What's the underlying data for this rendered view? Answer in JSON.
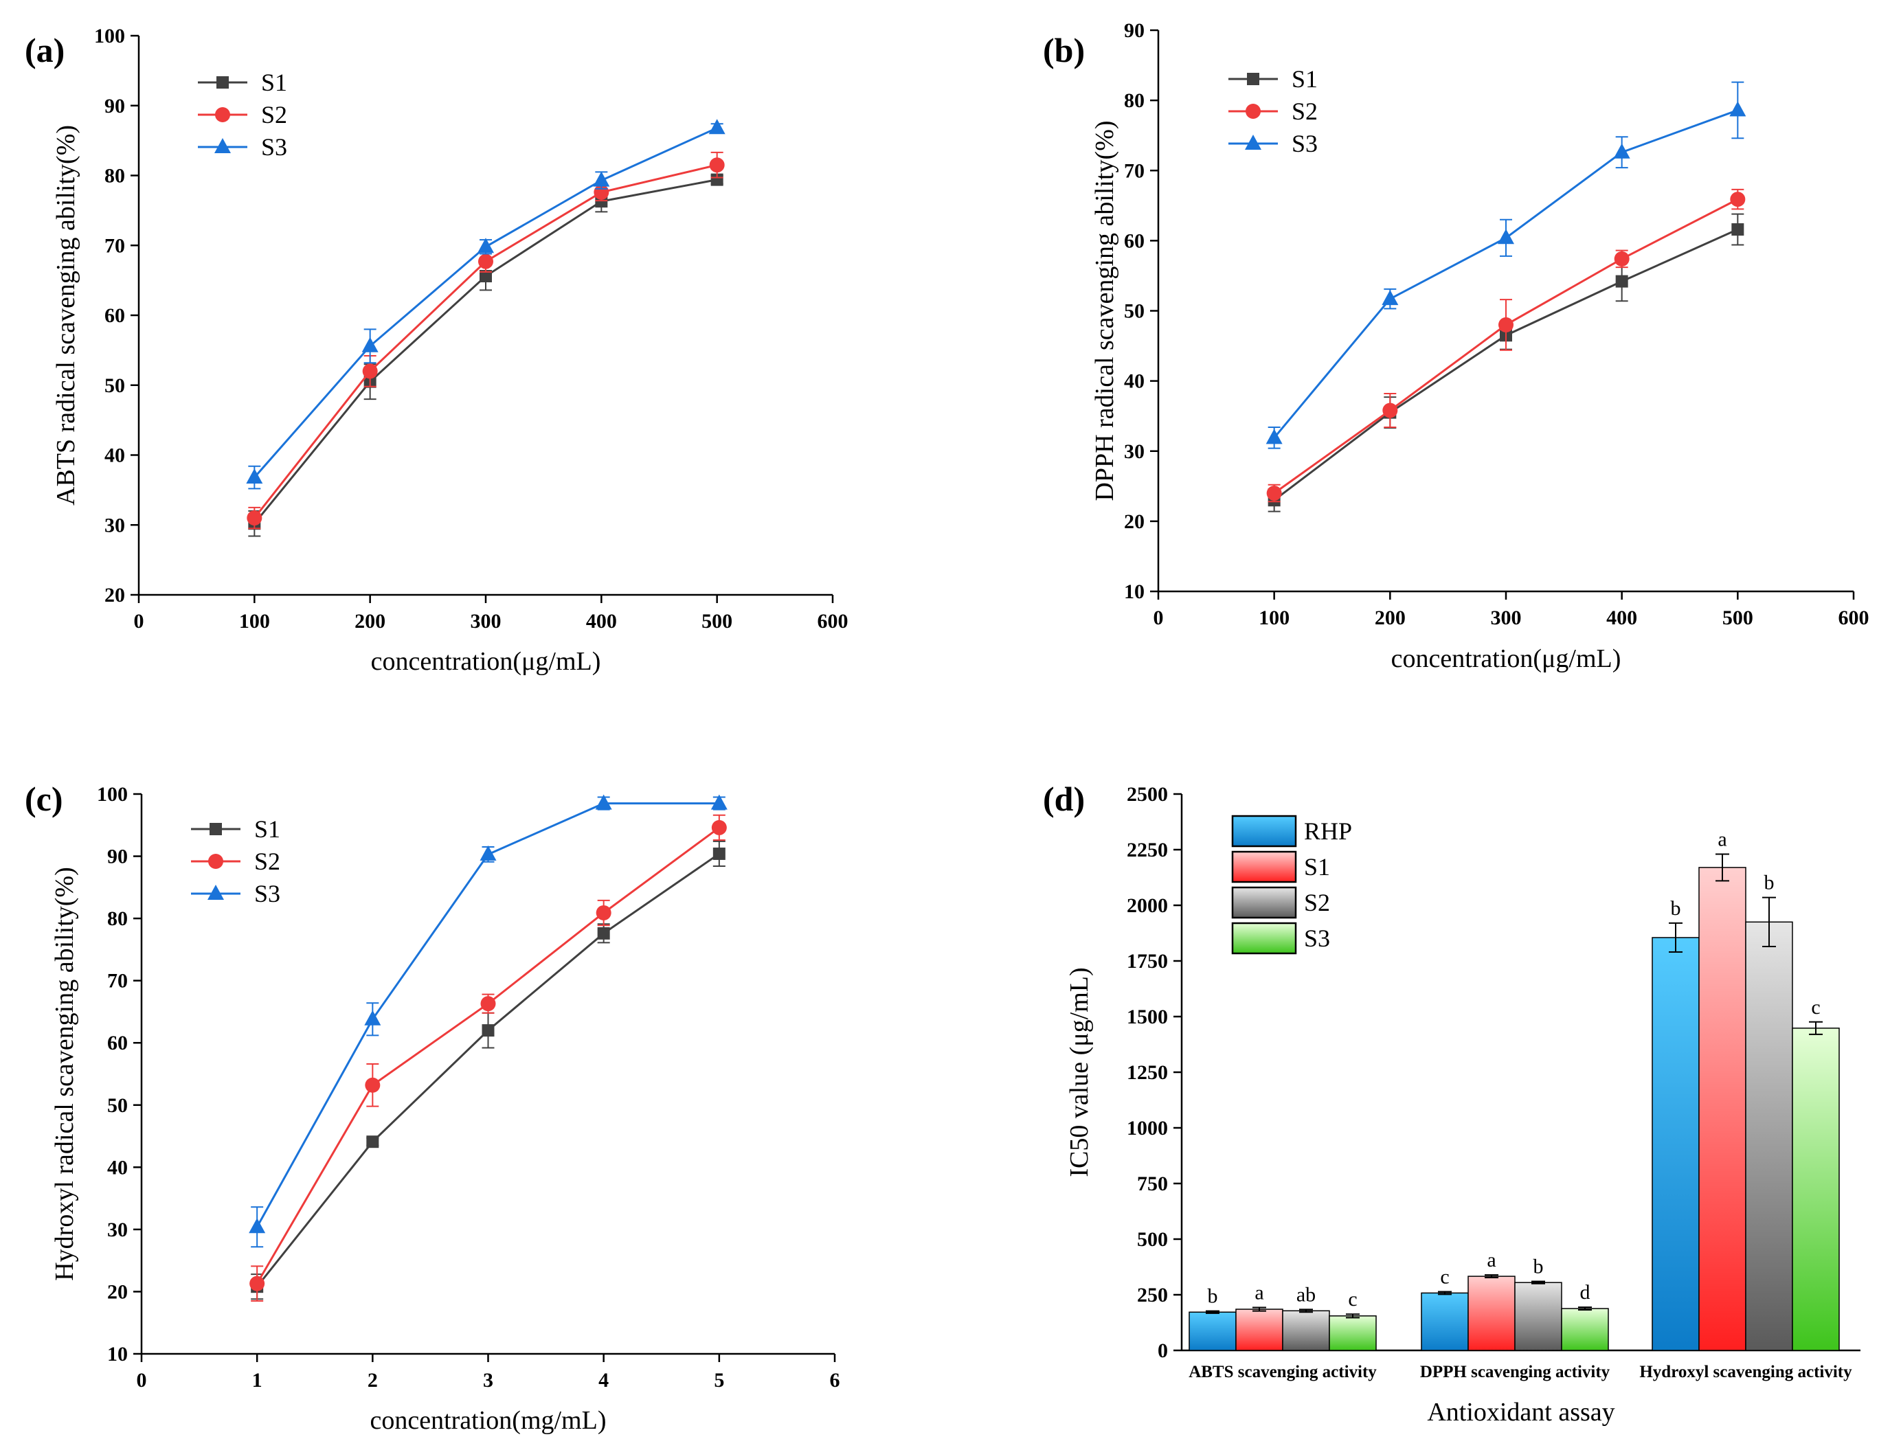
{
  "chart_data": [
    {
      "panel": "(a)",
      "type": "line",
      "title": "",
      "xlabel": "concentration(μg/mL)",
      "ylabel": "ABTS radical scavenging ability(%)",
      "xlim": [
        0,
        600
      ],
      "ylim": [
        20,
        100
      ],
      "xticks": [
        "0",
        "100",
        "200",
        "300",
        "400",
        "500",
        "600"
      ],
      "yticks": [
        "20",
        "30",
        "40",
        "50",
        "60",
        "70",
        "80",
        "90",
        "100"
      ],
      "x": [
        100,
        200,
        300,
        400,
        500
      ],
      "series": [
        {
          "name": "S1",
          "color": "#404040",
          "marker": "square",
          "values": [
            30.2,
            50.5,
            65.6,
            76.3,
            79.4
          ],
          "errors": [
            1.8,
            2.5,
            2.0,
            1.5,
            0.6
          ]
        },
        {
          "name": "S2",
          "color": "#ee3b3b",
          "marker": "circle",
          "values": [
            31.0,
            52.0,
            67.7,
            77.6,
            81.5
          ],
          "errors": [
            1.5,
            2.2,
            1.5,
            1.2,
            1.8
          ]
        },
        {
          "name": "S3",
          "color": "#1a73d9",
          "marker": "triangle",
          "values": [
            36.8,
            55.6,
            69.8,
            79.3,
            86.8
          ],
          "errors": [
            1.6,
            2.4,
            1.0,
            1.2,
            0.6
          ]
        }
      ]
    },
    {
      "panel": "(b)",
      "type": "line",
      "title": "",
      "xlabel": "concentration(μg/mL)",
      "ylabel": "DPPH radical scavenging ability(%)",
      "xlim": [
        0,
        600
      ],
      "ylim": [
        10,
        90
      ],
      "xticks": [
        "0",
        "100",
        "200",
        "300",
        "400",
        "500",
        "600"
      ],
      "yticks": [
        "10",
        "20",
        "30",
        "40",
        "50",
        "60",
        "70",
        "80",
        "90"
      ],
      "x": [
        100,
        200,
        300,
        400,
        500
      ],
      "series": [
        {
          "name": "S1",
          "color": "#404040",
          "marker": "square",
          "values": [
            23.0,
            35.5,
            46.5,
            54.2,
            61.6
          ],
          "errors": [
            1.6,
            2.2,
            2.0,
            2.8,
            2.2
          ]
        },
        {
          "name": "S2",
          "color": "#ee3b3b",
          "marker": "circle",
          "values": [
            24.0,
            35.8,
            48.0,
            57.4,
            65.9
          ],
          "errors": [
            1.2,
            2.4,
            3.6,
            1.2,
            1.4
          ]
        },
        {
          "name": "S3",
          "color": "#1a73d9",
          "marker": "triangle",
          "values": [
            31.9,
            51.7,
            60.4,
            72.6,
            78.6
          ],
          "errors": [
            1.5,
            1.4,
            2.6,
            2.2,
            4.0
          ]
        }
      ]
    },
    {
      "panel": "(c)",
      "type": "line",
      "title": "",
      "xlabel": "concentration(mg/mL)",
      "ylabel": "Hydroxyl radical scavenging ability(%)",
      "xlim": [
        0,
        6
      ],
      "ylim": [
        10,
        100
      ],
      "xticks": [
        "0",
        "1",
        "2",
        "3",
        "4",
        "5",
        "6"
      ],
      "yticks": [
        "10",
        "20",
        "30",
        "40",
        "50",
        "60",
        "70",
        "80",
        "90",
        "100"
      ],
      "x": [
        1,
        2,
        3,
        4,
        5
      ],
      "series": [
        {
          "name": "S1",
          "color": "#404040",
          "marker": "square",
          "values": [
            20.8,
            44.1,
            62.0,
            77.6,
            90.4
          ],
          "errors": [
            2.0,
            0.6,
            2.8,
            1.5,
            2.0
          ]
        },
        {
          "name": "S2",
          "color": "#ee3b3b",
          "marker": "circle",
          "values": [
            21.3,
            53.2,
            66.3,
            80.9,
            94.6
          ],
          "errors": [
            2.8,
            3.4,
            1.5,
            2.0,
            2.0
          ]
        },
        {
          "name": "S3",
          "color": "#1a73d9",
          "marker": "triangle",
          "values": [
            30.4,
            63.8,
            90.3,
            98.5,
            98.5
          ],
          "errors": [
            3.2,
            2.6,
            1.2,
            1.0,
            1.0
          ]
        }
      ]
    },
    {
      "panel": "(d)",
      "type": "bar",
      "title": "",
      "xlabel": "Antioxidant assay",
      "ylabel": "IC50 value (μg/mL)",
      "ylim": [
        0,
        2500
      ],
      "yticks": [
        "0",
        "250",
        "500",
        "750",
        "1000",
        "1250",
        "1500",
        "1750",
        "2000",
        "2250",
        "2500"
      ],
      "categories": [
        "ABTS scavenging activity",
        "DPPH scavenging activity",
        "Hydroxyl scavenging activity"
      ],
      "series": [
        {
          "name": "RHP",
          "top": "#55ccff",
          "bottom": "#0c7bc8",
          "values": [
            172,
            258,
            1855
          ],
          "errors": [
            5,
            6,
            65
          ],
          "letters": [
            "b",
            "c",
            "b"
          ]
        },
        {
          "name": "S1",
          "top": "#ffd0d0",
          "bottom": "#ff1f1f",
          "values": [
            185,
            333,
            2170
          ],
          "errors": [
            8,
            6,
            60
          ],
          "letters": [
            "a",
            "a",
            "a"
          ]
        },
        {
          "name": "S2",
          "top": "#e6e6e6",
          "bottom": "#5a5a5a",
          "values": [
            178,
            305,
            1925
          ],
          "errors": [
            6,
            5,
            110
          ],
          "letters": [
            "ab",
            "b",
            "b"
          ]
        },
        {
          "name": "S3",
          "top": "#e6ffd8",
          "bottom": "#3ec41c",
          "values": [
            155,
            188,
            1448
          ],
          "errors": [
            8,
            6,
            28
          ],
          "letters": [
            "c",
            "d",
            "c"
          ]
        }
      ]
    }
  ]
}
